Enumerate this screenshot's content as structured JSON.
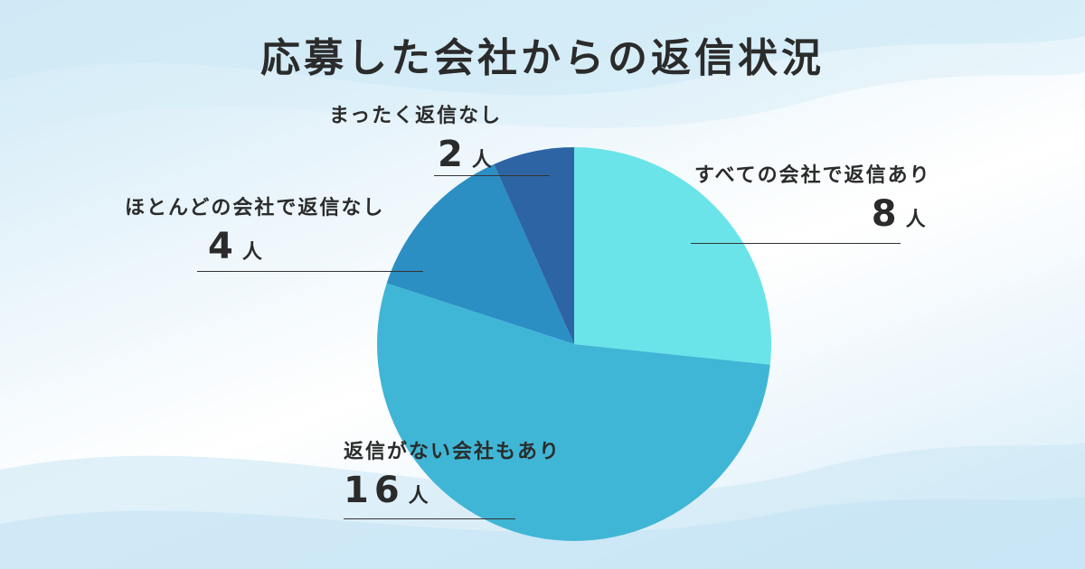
{
  "chart_data": {
    "type": "pie",
    "title": "応募した会社からの返信状況",
    "unit": "人",
    "start_angle_deg": 0,
    "direction": "clockwise",
    "slices": [
      {
        "label": "すべての会社で返信あり",
        "value": 8,
        "color": "#6ae4e9"
      },
      {
        "label": "返信がない会社もあり",
        "value": 16,
        "color": "#40b6d6"
      },
      {
        "label": "ほとんどの会社で返信なし",
        "value": 4,
        "color": "#2b8fc4"
      },
      {
        "label": "まったく返信なし",
        "value": 2,
        "color": "#2d64a4"
      }
    ]
  }
}
